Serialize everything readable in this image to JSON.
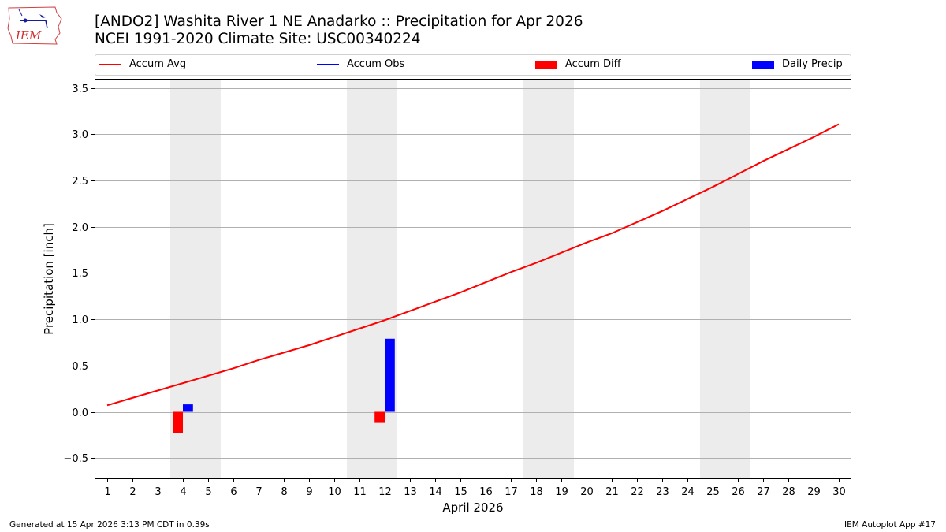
{
  "header": {
    "logo_text": "IEM",
    "title_line1": "[ANDO2] Washita River 1 NE Anadarko :: Precipitation for Apr 2026",
    "title_line2": "NCEI 1991-2020 Climate Site: USC00340224"
  },
  "legend": [
    {
      "label": "Accum Avg",
      "type": "line",
      "color": "#ff0000"
    },
    {
      "label": "Accum Obs",
      "type": "line",
      "color": "#0000ff"
    },
    {
      "label": "Accum Diff",
      "type": "patch",
      "color": "#ff0000"
    },
    {
      "label": "Daily Precip",
      "type": "patch",
      "color": "#0000ff"
    }
  ],
  "footer": {
    "generated": "Generated at 15 Apr 2026 3:13 PM CDT in 0.39s",
    "app": "IEM Autoplot App #17"
  },
  "chart_data": {
    "type": "line",
    "title": "[ANDO2] Washita River 1 NE Anadarko :: Precipitation for Apr 2026",
    "subtitle": "NCEI 1991-2020 Climate Site: USC00340224",
    "xlabel": "April 2026",
    "ylabel": "Precipitation [inch]",
    "ylim": [
      -0.72,
      3.6
    ],
    "xlim": [
      0.5,
      30.5
    ],
    "yticks": [
      -0.5,
      0.0,
      0.5,
      1.0,
      1.5,
      2.0,
      2.5,
      3.0,
      3.5
    ],
    "ytick_labels": [
      "−0.5",
      "0.0",
      "0.5",
      "1.0",
      "1.5",
      "2.0",
      "2.5",
      "3.0",
      "3.5"
    ],
    "x": [
      1,
      2,
      3,
      4,
      5,
      6,
      7,
      8,
      9,
      10,
      11,
      12,
      13,
      14,
      15,
      16,
      17,
      18,
      19,
      20,
      21,
      22,
      23,
      24,
      25,
      26,
      27,
      28,
      29,
      30
    ],
    "grid": "y",
    "legend_position": "top",
    "weekend_shading": [
      [
        3.5,
        5.5
      ],
      [
        10.5,
        12.5
      ],
      [
        17.5,
        19.5
      ],
      [
        24.5,
        26.5
      ]
    ],
    "series": [
      {
        "name": "Accum Avg",
        "type": "line",
        "color": "#ff0000",
        "values": [
          0.07,
          0.15,
          0.23,
          0.31,
          0.39,
          0.47,
          0.56,
          0.64,
          0.72,
          0.81,
          0.9,
          0.99,
          1.09,
          1.19,
          1.29,
          1.4,
          1.51,
          1.61,
          1.72,
          1.83,
          1.93,
          2.05,
          2.17,
          2.3,
          2.43,
          2.57,
          2.71,
          2.84,
          2.97,
          3.11
        ]
      },
      {
        "name": "Accum Obs",
        "type": "line",
        "color": "#0000ff",
        "values": []
      },
      {
        "name": "Accum Diff",
        "type": "bar",
        "color": "#ff0000",
        "points": [
          {
            "day": 4,
            "value": -0.23
          },
          {
            "day": 12,
            "value": -0.12
          }
        ]
      },
      {
        "name": "Daily Precip",
        "type": "bar",
        "color": "#0000ff",
        "points": [
          {
            "day": 4,
            "value": 0.08
          },
          {
            "day": 12,
            "value": 0.79
          }
        ]
      }
    ]
  }
}
